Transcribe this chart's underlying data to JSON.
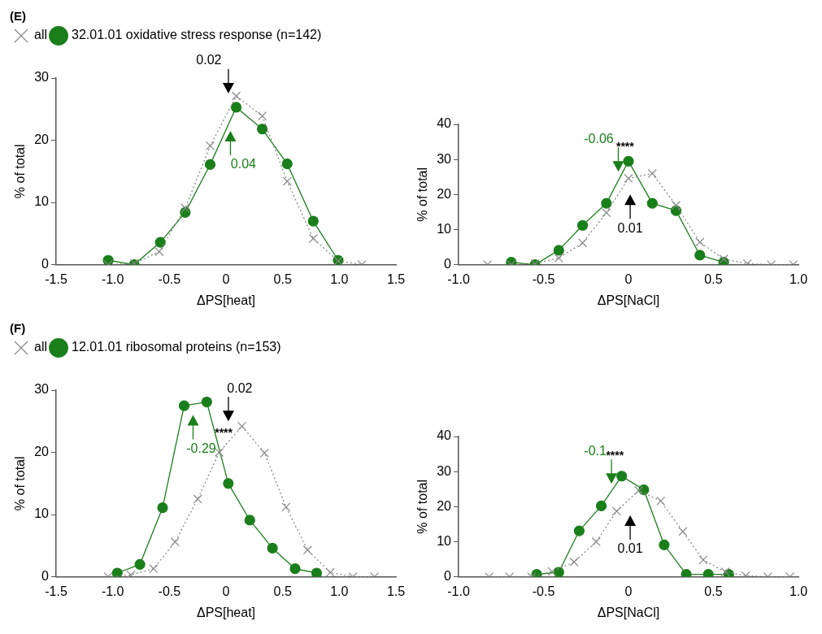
{
  "chart_data": [
    {
      "type": "line",
      "title": "(E)",
      "xlabel": "ΔPS[heat]",
      "ylabel": "% of total",
      "xlim": [
        -1.5,
        1.5
      ],
      "xticks": [
        {
          "value": -1.5,
          "label": "-1.5"
        },
        {
          "value": -1,
          "label": "-1.0"
        },
        {
          "value": -0.5,
          "label": "-0.5"
        },
        {
          "value": 0,
          "label": "0"
        },
        {
          "value": 0.5,
          "label": "0.5"
        },
        {
          "value": 1,
          "label": "1.0"
        },
        {
          "value": 1.5,
          "label": "1.5"
        }
      ],
      "ylim": [
        0,
        30
      ],
      "yticks": [
        0,
        10,
        20,
        30
      ],
      "legend": "top left",
      "annotations": [
        "0.02",
        "0.04"
      ],
      "series": [
        {
          "name": "all",
          "color": "#888888",
          "line_style": "dotted",
          "marker": "cross",
          "x": [
            -1.04,
            -0.81,
            -0.59,
            -0.36,
            -0.14,
            0.09,
            0.32,
            0.54,
            0.77,
            0.99,
            1.2
          ],
          "values": [
            0,
            0.2,
            2.1,
            9.1,
            19.1,
            27.1,
            23.9,
            13.4,
            4.2,
            0.6,
            0
          ]
        },
        {
          "name": "32.01.01 oxidative stress response (n=142)",
          "color": "#1a7f1a",
          "line_style": "solid",
          "marker": "circle",
          "x": [
            -1.04,
            -0.81,
            -0.58,
            -0.36,
            -0.14,
            0.09,
            0.32,
            0.54,
            0.77,
            0.99
          ],
          "values": [
            0.7,
            0,
            3.6,
            8.4,
            16.1,
            25.3,
            21.8,
            16.2,
            7.0,
            0.7
          ]
        }
      ]
    },
    {
      "type": "line",
      "xlabel": "ΔPS[NaCl]",
      "ylabel": "% of total",
      "xlim": [
        -1.0,
        1.0
      ],
      "xticks": [
        {
          "value": -1,
          "label": "-1.0"
        },
        {
          "value": -0.5,
          "label": "-0.5"
        },
        {
          "value": 0,
          "label": "0"
        },
        {
          "value": 0.5,
          "label": "0.5"
        },
        {
          "value": 1,
          "label": "1.0"
        }
      ],
      "ylim": [
        0,
        40
      ],
      "yticks": [
        0,
        10,
        20,
        30,
        40
      ],
      "annotations": [
        "****",
        "-0.06",
        "0.01"
      ],
      "series": [
        {
          "color": "#888888",
          "line_style": "dotted",
          "marker": "cross",
          "x": [
            -0.83,
            -0.69,
            -0.55,
            -0.41,
            -0.27,
            -0.13,
            0.0,
            0.14,
            0.28,
            0.42,
            0.56,
            0.7,
            0.84,
            0.97
          ],
          "values": [
            0,
            0,
            0.3,
            1.9,
            6.2,
            14.8,
            24.6,
            26.0,
            16.9,
            6.4,
            1.6,
            0.3,
            0,
            0
          ]
        },
        {
          "color": "#1a7f1a",
          "line_style": "solid",
          "marker": "circle",
          "x": [
            -0.69,
            -0.55,
            -0.41,
            -0.27,
            -0.13,
            0.0,
            0.14,
            0.28,
            0.42,
            0.56
          ],
          "values": [
            0.7,
            0,
            4.1,
            11.2,
            17.5,
            29.5,
            17.5,
            15.4,
            2.7,
            0.7
          ]
        }
      ]
    },
    {
      "type": "line",
      "title": "(F)",
      "xlabel": "ΔPS[heat]",
      "ylabel": "% of total",
      "xlim": [
        -1.5,
        1.5
      ],
      "xticks": [
        {
          "value": -1.5,
          "label": "-1.5"
        },
        {
          "value": -1,
          "label": "-1.0"
        },
        {
          "value": -0.5,
          "label": "-0.5"
        },
        {
          "value": 0,
          "label": "0"
        },
        {
          "value": 0.5,
          "label": "0.5"
        },
        {
          "value": 1,
          "label": "1.0"
        },
        {
          "value": 1.5,
          "label": "1.5"
        }
      ],
      "ylim": [
        0,
        30
      ],
      "yticks": [
        0,
        10,
        20,
        30
      ],
      "legend": "top left",
      "annotations": [
        "0.02",
        "-0.29",
        "****"
      ],
      "series": [
        {
          "name": "all",
          "color": "#888888",
          "line_style": "dotted",
          "marker": "cross",
          "x": [
            -1.04,
            -0.84,
            -0.64,
            -0.45,
            -0.25,
            -0.06,
            0.14,
            0.34,
            0.53,
            0.72,
            0.92,
            1.12,
            1.31
          ],
          "values": [
            0,
            0.3,
            1.3,
            5.6,
            12.5,
            20.0,
            24.2,
            19.9,
            11.2,
            4.3,
            0.7,
            0,
            0
          ]
        },
        {
          "name": "12.01.01 ribosomal proteins (n=153)",
          "color": "#1a7f1a",
          "line_style": "solid",
          "marker": "circle",
          "x": [
            -0.96,
            -0.76,
            -0.56,
            -0.37,
            -0.17,
            0.02,
            0.21,
            0.41,
            0.61,
            0.8
          ],
          "values": [
            0.6,
            2.0,
            11.1,
            27.5,
            28.1,
            15.0,
            9.1,
            4.6,
            1.3,
            0.6
          ]
        }
      ]
    },
    {
      "type": "line",
      "xlabel": "ΔPS[NaCl]",
      "ylabel": "% of total",
      "xlim": [
        -1.0,
        1.0
      ],
      "xticks": [
        {
          "value": -1,
          "label": "-1.0"
        },
        {
          "value": -0.5,
          "label": "-0.5"
        },
        {
          "value": 0,
          "label": "0"
        },
        {
          "value": 0.5,
          "label": "0.5"
        },
        {
          "value": 1,
          "label": "1.0"
        }
      ],
      "ylim": [
        0,
        40
      ],
      "yticks": [
        0,
        10,
        20,
        30,
        40
      ],
      "annotations": [
        "****",
        "-0.1",
        "0.01"
      ],
      "series": [
        {
          "color": "#888888",
          "line_style": "dotted",
          "marker": "cross",
          "x": [
            -0.82,
            -0.7,
            -0.57,
            -0.45,
            -0.32,
            -0.19,
            -0.07,
            0.06,
            0.19,
            0.32,
            0.44,
            0.57,
            0.69,
            0.82,
            0.95
          ],
          "values": [
            0,
            0,
            0,
            1.5,
            4.2,
            10.0,
            18.7,
            24.6,
            21.6,
            12.9,
            4.8,
            1.4,
            0.3,
            0,
            0
          ]
        },
        {
          "color": "#1a7f1a",
          "line_style": "solid",
          "marker": "circle",
          "x": [
            -0.54,
            -0.41,
            -0.29,
            -0.16,
            -0.04,
            0.09,
            0.21,
            0.34,
            0.47,
            0.59
          ],
          "values": [
            0.7,
            1.3,
            13.1,
            20.2,
            28.7,
            24.8,
            9.1,
            0.7,
            0.7,
            0.7
          ]
        }
      ]
    }
  ]
}
